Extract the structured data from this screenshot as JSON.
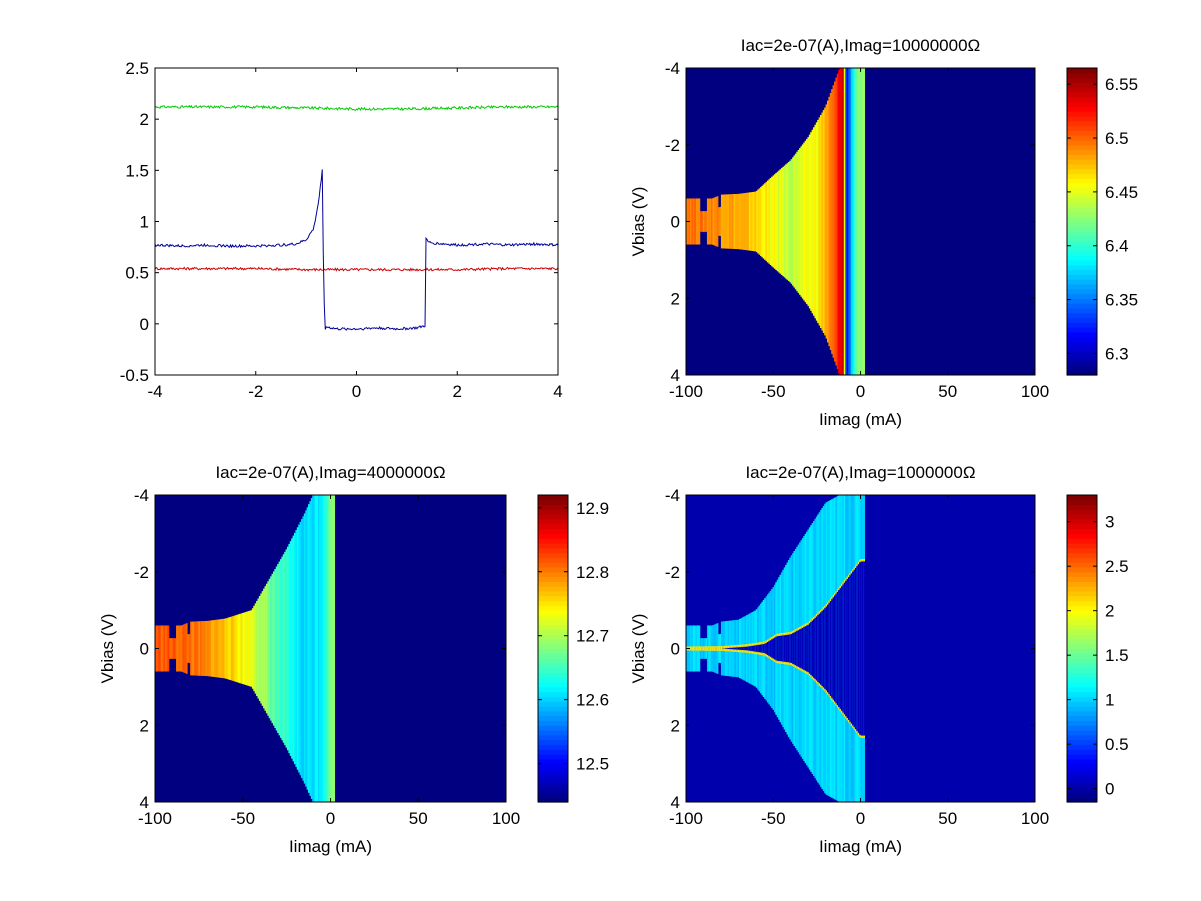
{
  "figure": {
    "background": "#ffffff"
  },
  "chart_data": [
    {
      "type": "line",
      "title": "",
      "xlabel": "",
      "ylabel": "",
      "xlim": [
        -4,
        4
      ],
      "ylim": [
        -0.5,
        2.5
      ],
      "xticks": [
        -4,
        -2,
        0,
        2,
        4
      ],
      "yticks": [
        -0.5,
        0,
        0.5,
        1,
        1.5,
        2,
        2.5
      ],
      "xtick_labels": [
        "-4",
        "-2",
        "0",
        "2",
        "4"
      ],
      "ytick_labels": [
        "-0.5",
        "0",
        "0.5",
        "1",
        "1.5",
        "2",
        "2.5"
      ],
      "grid": false,
      "series": [
        {
          "color": "#00cc00",
          "x": [
            -4,
            -3,
            -2,
            -1,
            0,
            1,
            2,
            3,
            4
          ],
          "y": [
            2.12,
            2.12,
            2.12,
            2.11,
            2.1,
            2.1,
            2.11,
            2.12,
            2.12
          ]
        },
        {
          "color": "#cc0000",
          "x": [
            -4,
            -3,
            -2,
            -1,
            0,
            1,
            2,
            3,
            4
          ],
          "y": [
            0.54,
            0.54,
            0.54,
            0.53,
            0.53,
            0.53,
            0.53,
            0.54,
            0.54
          ]
        },
        {
          "color": "#000099",
          "x": [
            -4,
            -3.5,
            -3,
            -2.5,
            -2,
            -1.5,
            -1.2,
            -1.0,
            -0.85,
            -0.75,
            -0.68,
            -0.66,
            -0.63,
            -0.6,
            -0.4,
            0,
            0.4,
            0.8,
            1.2,
            1.36,
            1.38,
            1.42,
            1.5,
            2,
            2.5,
            3,
            3.5,
            4
          ],
          "y": [
            0.77,
            0.76,
            0.77,
            0.76,
            0.76,
            0.77,
            0.78,
            0.82,
            0.93,
            1.2,
            1.5,
            0.7,
            -0.05,
            -0.03,
            -0.05,
            -0.05,
            -0.04,
            -0.05,
            -0.04,
            -0.02,
            0.83,
            0.8,
            0.79,
            0.77,
            0.78,
            0.77,
            0.78,
            0.77
          ]
        }
      ]
    },
    {
      "type": "heatmap",
      "title": "Iac=2e-07(A),Imag=10000000Ω",
      "xlabel": "Iimag (mA)",
      "ylabel": "Vbias (V)",
      "xlim": [
        -100,
        100
      ],
      "ylim": [
        -4,
        4
      ],
      "y_reversed": true,
      "xticks": [
        -100,
        -50,
        0,
        50,
        100
      ],
      "yticks": [
        -4,
        -2,
        0,
        2,
        4
      ],
      "xtick_labels": [
        "-100",
        "-50",
        "0",
        "50",
        "100"
      ],
      "ytick_labels": [
        "-4",
        "-2",
        "0",
        "2",
        "4"
      ],
      "colormap": "jet",
      "clim": [
        6.28,
        6.565
      ],
      "colorbar_ticks": [
        6.3,
        6.35,
        6.4,
        6.45,
        6.5,
        6.55
      ],
      "colorbar_labels": [
        "6.3",
        "6.35",
        "6.4",
        "6.45",
        "6.5",
        "6.55"
      ],
      "background_value": 6.28,
      "envelope": [
        [
          -100,
          0.6
        ],
        [
          -85,
          0.6
        ],
        [
          -80,
          0.7
        ],
        [
          -70,
          0.72
        ],
        [
          -60,
          0.78
        ],
        [
          -50,
          1.2
        ],
        [
          -40,
          1.6
        ],
        [
          -30,
          2.2
        ],
        [
          -20,
          3.0
        ],
        [
          -12,
          4.0
        ],
        [
          -5,
          4.0
        ],
        [
          0,
          4.0
        ],
        [
          2,
          4.0
        ]
      ],
      "band_x": [
        -100,
        2
      ],
      "band_values": [
        [
          -100,
          6.5
        ],
        [
          -80,
          6.49
        ],
        [
          -60,
          6.47
        ],
        [
          -40,
          6.44
        ],
        [
          -25,
          6.46
        ],
        [
          -15,
          6.5
        ],
        [
          -10,
          6.55
        ],
        [
          -8,
          6.3
        ],
        [
          -5,
          6.38
        ],
        [
          -2,
          6.42
        ],
        [
          2,
          6.42
        ]
      ]
    },
    {
      "type": "heatmap",
      "title": "Iac=2e-07(A),Imag=4000000Ω",
      "xlabel": "Iimag (mA)",
      "ylabel": "Vbias (V)",
      "xlim": [
        -100,
        100
      ],
      "ylim": [
        -4,
        4
      ],
      "y_reversed": true,
      "xticks": [
        -100,
        -50,
        0,
        50,
        100
      ],
      "yticks": [
        -4,
        -2,
        0,
        2,
        4
      ],
      "xtick_labels": [
        "-100",
        "-50",
        "0",
        "50",
        "100"
      ],
      "ytick_labels": [
        "-4",
        "-2",
        "0",
        "2",
        "4"
      ],
      "colormap": "jet",
      "clim": [
        12.44,
        12.92
      ],
      "colorbar_ticks": [
        12.5,
        12.6,
        12.7,
        12.8,
        12.9
      ],
      "colorbar_labels": [
        "12.5",
        "12.6",
        "12.7",
        "12.8",
        "12.9"
      ],
      "background_value": 12.44,
      "envelope": [
        [
          -100,
          0.6
        ],
        [
          -85,
          0.6
        ],
        [
          -80,
          0.7
        ],
        [
          -70,
          0.72
        ],
        [
          -60,
          0.78
        ],
        [
          -45,
          1.0
        ],
        [
          -35,
          1.8
        ],
        [
          -25,
          2.6
        ],
        [
          -15,
          3.5
        ],
        [
          -10,
          4.0
        ],
        [
          0,
          4.0
        ],
        [
          2,
          4.0
        ]
      ],
      "band_x": [
        -100,
        2
      ],
      "band_values": [
        [
          -100,
          12.82
        ],
        [
          -80,
          12.81
        ],
        [
          -60,
          12.77
        ],
        [
          -45,
          12.73
        ],
        [
          -30,
          12.65
        ],
        [
          -15,
          12.6
        ],
        [
          -5,
          12.62
        ],
        [
          0,
          12.68
        ],
        [
          2,
          12.68
        ]
      ]
    },
    {
      "type": "heatmap",
      "title": "Iac=2e-07(A),Imag=1000000Ω",
      "xlabel": "Iimag (mA)",
      "ylabel": "Vbias (V)",
      "xlim": [
        -100,
        100
      ],
      "ylim": [
        -4,
        4
      ],
      "y_reversed": true,
      "xticks": [
        -100,
        -50,
        0,
        50,
        100
      ],
      "yticks": [
        -4,
        -2,
        0,
        2,
        4
      ],
      "xtick_labels": [
        "-100",
        "-50",
        "0",
        "50",
        "100"
      ],
      "ytick_labels": [
        "-4",
        "-2",
        "0",
        "2",
        "4"
      ],
      "colormap": "jet",
      "clim": [
        -0.15,
        3.3
      ],
      "colorbar_ticks": [
        0,
        0.5,
        1,
        1.5,
        2,
        2.5,
        3
      ],
      "colorbar_labels": [
        "0",
        "0.5",
        "1",
        "1.5",
        "2",
        "2.5",
        "3"
      ],
      "background_value": 0,
      "envelope": [
        [
          -100,
          0.6
        ],
        [
          -85,
          0.6
        ],
        [
          -80,
          0.7
        ],
        [
          -70,
          0.75
        ],
        [
          -60,
          1.0
        ],
        [
          -50,
          1.6
        ],
        [
          -40,
          2.4
        ],
        [
          -30,
          3.1
        ],
        [
          -20,
          3.8
        ],
        [
          -12,
          4.0
        ],
        [
          0,
          4.0
        ],
        [
          2,
          4.0
        ]
      ],
      "band_x": [
        -100,
        2
      ],
      "band_value": 1.0,
      "ridge": [
        [
          -100,
          0.02
        ],
        [
          -80,
          0.03
        ],
        [
          -65,
          0.08
        ],
        [
          -55,
          0.15
        ],
        [
          -48,
          0.35
        ],
        [
          -40,
          0.4
        ],
        [
          -30,
          0.65
        ],
        [
          -20,
          1.1
        ],
        [
          -10,
          1.7
        ],
        [
          -5,
          2.0
        ],
        [
          0,
          2.3
        ]
      ],
      "ridge_value": 2.1,
      "inner_value": 0.05
    }
  ]
}
